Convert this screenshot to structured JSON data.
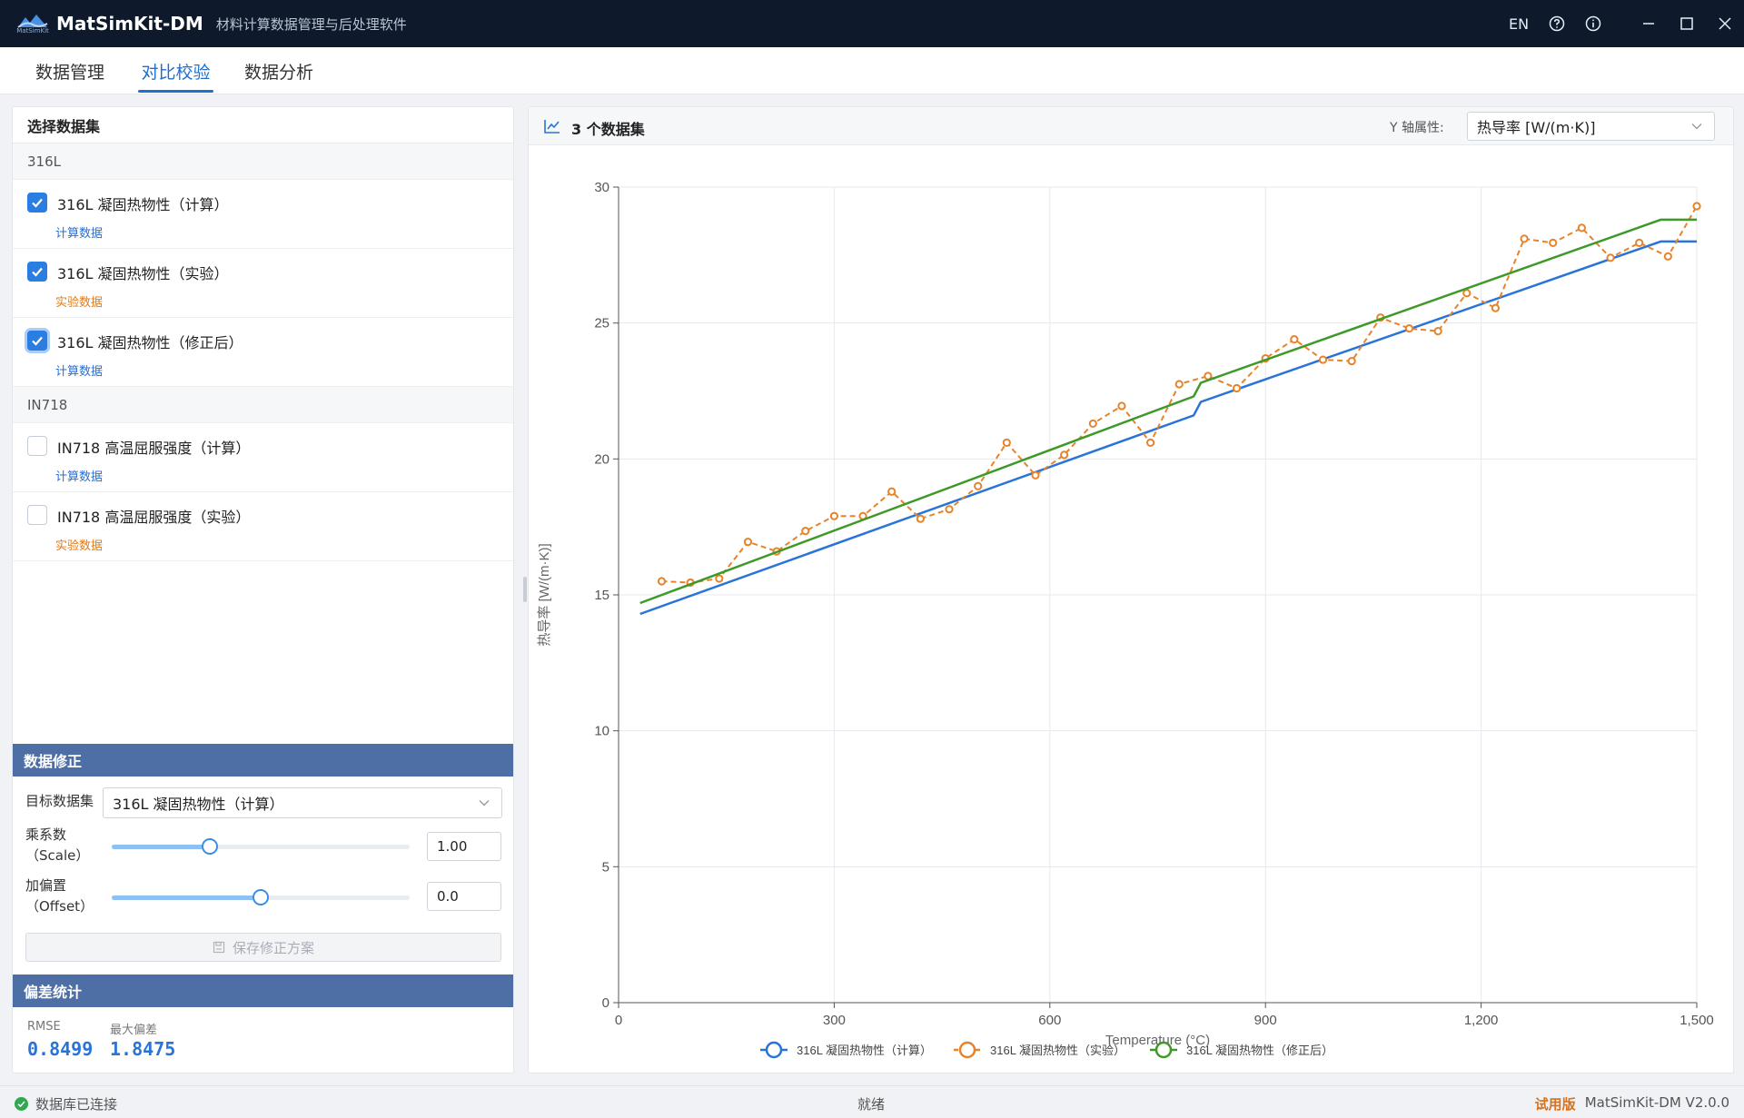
{
  "app": {
    "logo_text": "MatSimKit",
    "title": "MatSimKit-DM",
    "subtitle": "材料计算数据管理与后处理软件",
    "lang": "EN",
    "icons": [
      "help-icon",
      "info-icon",
      "minimize-icon",
      "maximize-icon",
      "close-icon"
    ]
  },
  "tabs": [
    {
      "label": "数据管理",
      "active": false
    },
    {
      "label": "对比校验",
      "active": true
    },
    {
      "label": "数据分析",
      "active": false
    }
  ],
  "left": {
    "title": "选择数据集",
    "groups": [
      {
        "name": "316L",
        "items": [
          {
            "name": "316L 凝固热物性（计算）",
            "tag": "计算数据",
            "checked": true
          },
          {
            "name": "316L 凝固热物性（实验）",
            "tag": "实验数据",
            "checked": true
          },
          {
            "name": "316L 凝固热物性（修正后）",
            "tag": "计算数据",
            "checked": true
          }
        ]
      },
      {
        "name": "IN718",
        "items": [
          {
            "name": "IN718 高温屈服强度（计算）",
            "tag": "计算数据",
            "checked": false
          },
          {
            "name": "IN718 高温屈服强度（实验）",
            "tag": "实验数据",
            "checked": false
          }
        ]
      }
    ],
    "correction": {
      "title": "数据修正",
      "target_label": "目标数据集",
      "target_value": "316L 凝固热物性（计算）",
      "scale_label": "乘系数",
      "scale_sub": "（Scale）",
      "scale_value": "1.00",
      "scale_fraction": 0.33,
      "offset_label": "加偏置",
      "offset_sub": "（Offset）",
      "offset_value": "0.0",
      "offset_fraction": 0.5,
      "save_label": "保存修正方案"
    },
    "stats": {
      "title": "偏差统计",
      "rmse_label": "RMSE",
      "rmse_value": "0.8499",
      "maxdev_label": "最大偏差",
      "maxdev_value": "1.8475"
    }
  },
  "right": {
    "title": "3 个数据集",
    "yprop_label": "Y 轴属性:",
    "yprop_value": "热导率 [W/(m·K)]"
  },
  "chart_data": {
    "type": "line",
    "title": "",
    "xlabel": "Temperature (°C)",
    "ylabel": "热导率 [W/(m·K)]",
    "xlim": [
      0,
      1500
    ],
    "ylim": [
      0,
      30
    ],
    "xticks": [
      0,
      300,
      600,
      900,
      1200,
      1500
    ],
    "xtick_labels": [
      "0",
      "300",
      "600",
      "900",
      "1,200",
      "1,500"
    ],
    "yticks": [
      0,
      5,
      10,
      15,
      20,
      25,
      30
    ],
    "grid": true,
    "legend": "bottom",
    "series": [
      {
        "name": "316L 凝固热物性（计算）",
        "color": "#2a73d8",
        "style": "solid",
        "markers": false,
        "points": [
          [
            30,
            14.3
          ],
          [
            800,
            21.6
          ],
          [
            810,
            22.1
          ],
          [
            1450,
            28.0
          ],
          [
            1500,
            28.0
          ]
        ]
      },
      {
        "name": "316L 凝固热物性（实验）",
        "color": "#e7832a",
        "style": "dashed",
        "markers": true,
        "points": [
          [
            60,
            15.5
          ],
          [
            100,
            15.45
          ],
          [
            140,
            15.6
          ],
          [
            180,
            16.95
          ],
          [
            220,
            16.6
          ],
          [
            260,
            17.35
          ],
          [
            300,
            17.9
          ],
          [
            340,
            17.9
          ],
          [
            380,
            18.8
          ],
          [
            420,
            17.8
          ],
          [
            460,
            18.15
          ],
          [
            500,
            19.0
          ],
          [
            540,
            20.6
          ],
          [
            580,
            19.4
          ],
          [
            620,
            20.15
          ],
          [
            660,
            21.3
          ],
          [
            700,
            21.95
          ],
          [
            740,
            20.6
          ],
          [
            780,
            22.75
          ],
          [
            820,
            23.05
          ],
          [
            860,
            22.6
          ],
          [
            900,
            23.7
          ],
          [
            940,
            24.4
          ],
          [
            980,
            23.65
          ],
          [
            1020,
            23.6
          ],
          [
            1060,
            25.2
          ],
          [
            1100,
            24.8
          ],
          [
            1140,
            24.7
          ],
          [
            1180,
            26.1
          ],
          [
            1220,
            25.55
          ],
          [
            1260,
            28.1
          ],
          [
            1300,
            27.95
          ],
          [
            1340,
            28.5
          ],
          [
            1380,
            27.4
          ],
          [
            1420,
            27.95
          ],
          [
            1460,
            27.45
          ],
          [
            1500,
            29.3
          ]
        ]
      },
      {
        "name": "316L 凝固热物性（修正后）",
        "color": "#3d9a28",
        "style": "solid",
        "markers": false,
        "points": [
          [
            30,
            14.7
          ],
          [
            800,
            22.3
          ],
          [
            810,
            22.8
          ],
          [
            1450,
            28.8
          ],
          [
            1500,
            28.8
          ]
        ]
      }
    ]
  },
  "status": {
    "db": "数据库已连接",
    "state": "就绪",
    "trial": "试用版",
    "version": "MatSimKit-DM V2.0.0"
  }
}
